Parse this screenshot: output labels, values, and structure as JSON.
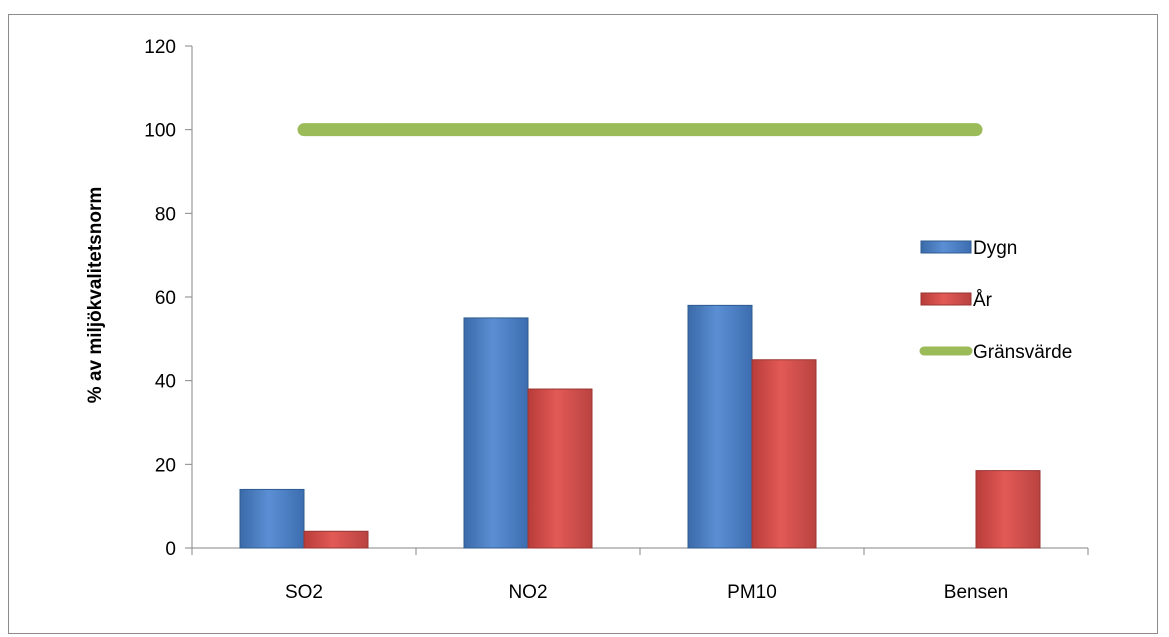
{
  "chart_data": {
    "type": "bar",
    "categories": [
      "SO2",
      "NO2",
      "PM10",
      "Bensen"
    ],
    "series": [
      {
        "name": "Dygn",
        "values": [
          14,
          55,
          58,
          null
        ],
        "color": "#4f81bd"
      },
      {
        "name": "År",
        "values": [
          4,
          38,
          45,
          18.5
        ],
        "color": "#c0504d"
      }
    ],
    "lines": [
      {
        "name": "Gränsvärde",
        "values": [
          100,
          100,
          100,
          100
        ],
        "color": "#9bbb59"
      }
    ],
    "title": "",
    "xlabel": "",
    "ylabel": "% av miljökvalitetsnorm",
    "ylim": [
      0,
      120
    ],
    "yticks": [
      "0",
      "20",
      "40",
      "60",
      "80",
      "100",
      "120"
    ],
    "grid": false,
    "legend_position": "right"
  }
}
